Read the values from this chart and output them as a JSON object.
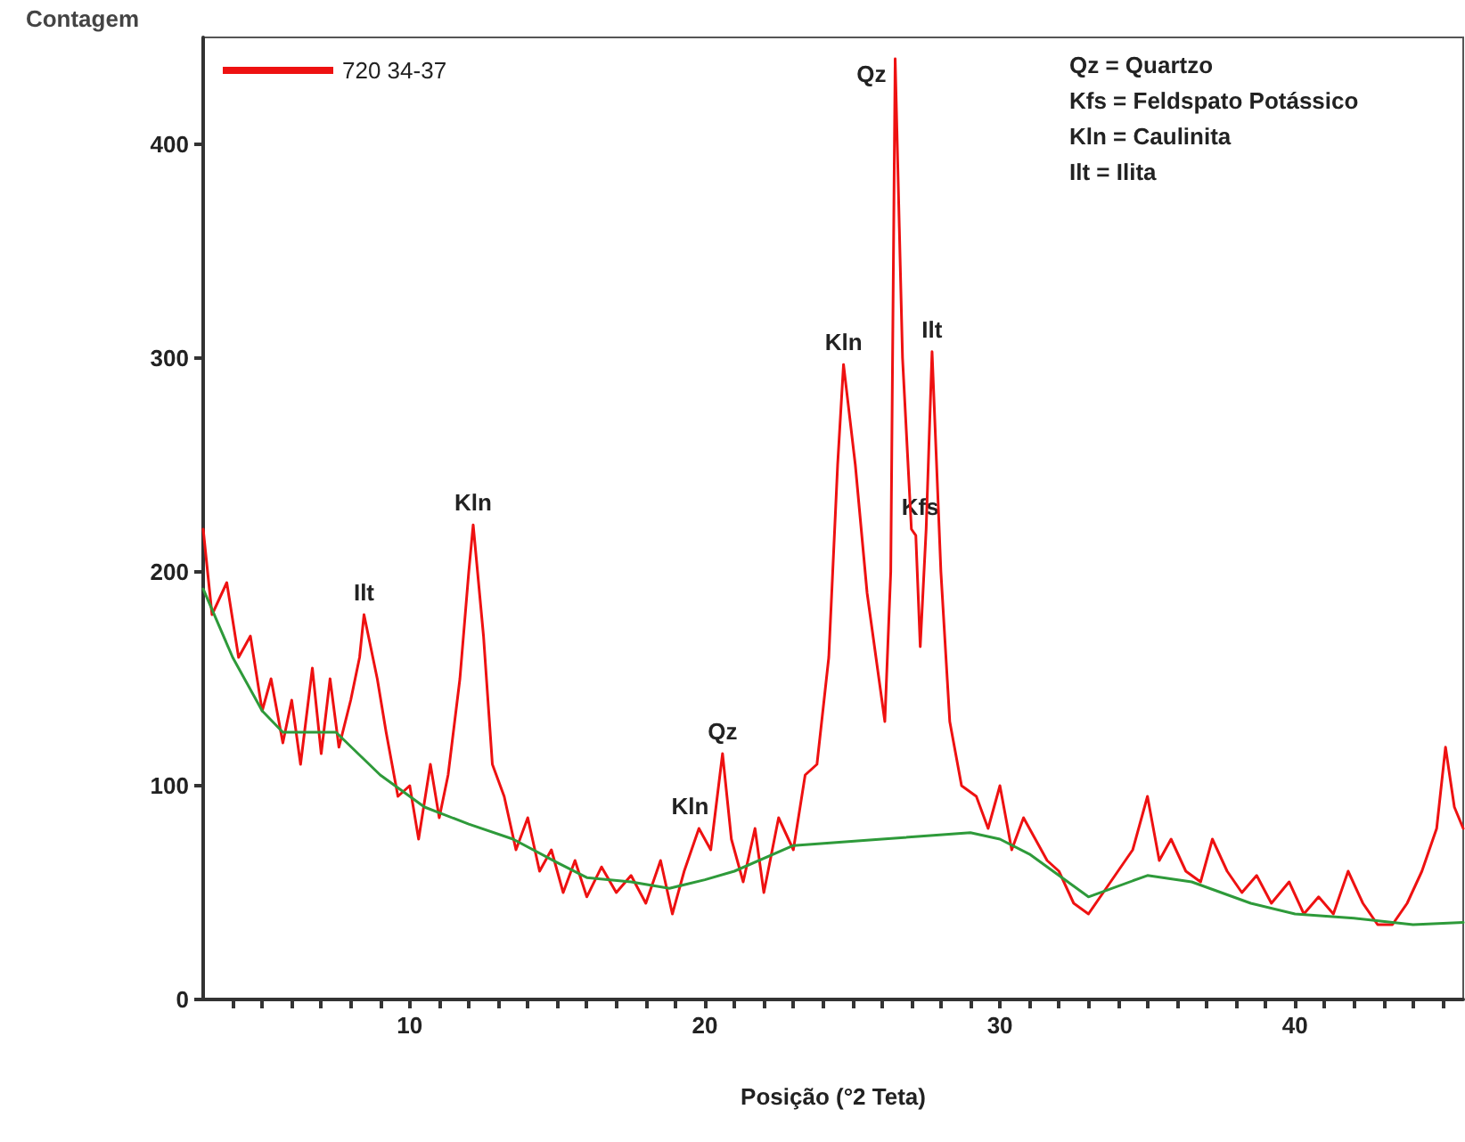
{
  "chart_data": {
    "type": "line",
    "xlabel": "Posição (°2 Teta)",
    "ylabel": "Contagem",
    "xlim": [
      3,
      45.7
    ],
    "ylim": [
      0,
      450
    ],
    "xticks": [
      {
        "value": 4,
        "label": null
      },
      {
        "value": 5,
        "label": null
      },
      {
        "value": 6,
        "label": null
      },
      {
        "value": 7,
        "label": null
      },
      {
        "value": 8,
        "label": null
      },
      {
        "value": 9,
        "label": null
      },
      10,
      {
        "value": 11,
        "label": null
      },
      {
        "value": 12,
        "label": null
      },
      {
        "value": 13,
        "label": null
      },
      {
        "value": 14,
        "label": null
      },
      {
        "value": 15,
        "label": null
      },
      {
        "value": 16,
        "label": null
      },
      {
        "value": 17,
        "label": null
      },
      {
        "value": 18,
        "label": null
      },
      {
        "value": 19,
        "label": null
      },
      20,
      {
        "value": 21,
        "label": null
      },
      {
        "value": 22,
        "label": null
      },
      {
        "value": 23,
        "label": null
      },
      {
        "value": 24,
        "label": null
      },
      {
        "value": 25,
        "label": null
      },
      {
        "value": 26,
        "label": null
      },
      {
        "value": 27,
        "label": null
      },
      {
        "value": 28,
        "label": null
      },
      {
        "value": 29,
        "label": null
      },
      30,
      {
        "value": 31,
        "label": null
      },
      {
        "value": 32,
        "label": null
      },
      {
        "value": 33,
        "label": null
      },
      {
        "value": 34,
        "label": null
      },
      {
        "value": 35,
        "label": null
      },
      {
        "value": 36,
        "label": null
      },
      {
        "value": 37,
        "label": null
      },
      {
        "value": 38,
        "label": null
      },
      {
        "value": 39,
        "label": null
      },
      40,
      {
        "value": 41,
        "label": null
      },
      {
        "value": 42,
        "label": null
      },
      {
        "value": 43,
        "label": null
      },
      {
        "value": 44,
        "label": null
      },
      {
        "value": 45,
        "label": null
      }
    ],
    "yticks": [
      0,
      100,
      200,
      300,
      400
    ],
    "grid": false,
    "legend": "top left",
    "marker": "none",
    "line_style": "solid",
    "series": [
      {
        "name": "720 34-37",
        "color": "#ee1111",
        "x": [
          3,
          3.3,
          3.8,
          4.2,
          4.6,
          5,
          5.3,
          5.7,
          6,
          6.3,
          6.7,
          7,
          7.3,
          7.6,
          8,
          8.3,
          8.45,
          8.9,
          9.2,
          9.6,
          10,
          10.3,
          10.7,
          11,
          11.3,
          11.7,
          12,
          12.15,
          12.5,
          12.8,
          13.2,
          13.6,
          14,
          14.4,
          14.8,
          15.2,
          15.6,
          16,
          16.5,
          17,
          17.5,
          18,
          18.5,
          18.9,
          19.3,
          19.8,
          20.2,
          20.6,
          20.9,
          21.3,
          21.7,
          22,
          22.5,
          23,
          23.4,
          23.8,
          24.2,
          24.5,
          24.7,
          25.1,
          25.5,
          25.9,
          26.1,
          26.3,
          26.45,
          26.7,
          27,
          27.15,
          27.3,
          27.5,
          27.7,
          28,
          28.3,
          28.7,
          29.2,
          29.6,
          30,
          30.4,
          30.8,
          31.2,
          31.6,
          32,
          32.5,
          33,
          33.5,
          34,
          34.5,
          35,
          35.4,
          35.8,
          36.3,
          36.8,
          37.2,
          37.7,
          38.2,
          38.7,
          39.2,
          39.8,
          40.3,
          40.8,
          41.3,
          41.8,
          42.3,
          42.8,
          43.3,
          43.8,
          44.3,
          44.8,
          45.1,
          45.4,
          45.7
        ],
        "values": [
          220,
          180,
          195,
          160,
          170,
          135,
          150,
          120,
          140,
          110,
          155,
          115,
          150,
          118,
          140,
          160,
          180,
          150,
          125,
          95,
          100,
          75,
          110,
          85,
          105,
          150,
          200,
          222,
          170,
          110,
          95,
          70,
          85,
          60,
          70,
          50,
          65,
          48,
          62,
          50,
          58,
          45,
          65,
          40,
          60,
          80,
          70,
          115,
          75,
          55,
          80,
          50,
          85,
          70,
          105,
          110,
          160,
          250,
          297,
          250,
          190,
          150,
          130,
          200,
          440,
          300,
          220,
          217,
          165,
          220,
          303,
          200,
          130,
          100,
          95,
          80,
          100,
          70,
          85,
          75,
          65,
          60,
          45,
          40,
          50,
          60,
          70,
          95,
          65,
          75,
          60,
          55,
          75,
          60,
          50,
          58,
          45,
          55,
          40,
          48,
          40,
          60,
          45,
          35,
          35,
          45,
          60,
          80,
          118,
          90,
          80
        ]
      },
      {
        "color": "#2e9a3a",
        "x": [
          3,
          4,
          5,
          5.7,
          7.5,
          9,
          10.5,
          12,
          13.5,
          15,
          16,
          17.5,
          18.8,
          20,
          21,
          23,
          26,
          29,
          30,
          31,
          33,
          35,
          36.5,
          38.5,
          40,
          42,
          44,
          45.7
        ],
        "values": [
          192,
          160,
          135,
          125,
          125,
          105,
          90,
          82,
          75,
          64,
          57,
          55,
          52,
          56,
          60,
          72,
          75,
          78,
          75,
          68,
          48,
          58,
          55,
          45,
          40,
          38,
          35,
          36
        ]
      }
    ],
    "annotations": [
      {
        "text": "Ilt",
        "x": 8.45,
        "y": 180
      },
      {
        "text": "Kln",
        "x": 12.15,
        "y": 222
      },
      {
        "text": "Kln",
        "x": 19.5,
        "y": 80
      },
      {
        "text": "Qz",
        "x": 20.6,
        "y": 115
      },
      {
        "text": "Kln",
        "x": 24.7,
        "y": 297
      },
      {
        "text": "Qz",
        "x": 26.45,
        "y": 440
      },
      {
        "text": "Kfs",
        "x": 27.3,
        "y": 220
      },
      {
        "text": "Ilt",
        "x": 27.7,
        "y": 303
      },
      "Qz = Quartzo",
      "Kfs = Feldspato Potássico",
      "Kln = Caulinita",
      "Ilt = Ilita"
    ]
  }
}
